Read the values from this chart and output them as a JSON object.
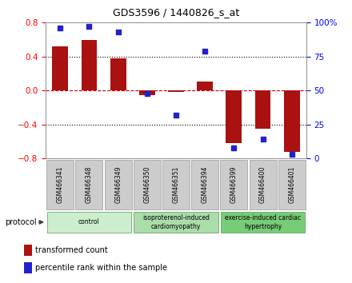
{
  "title": "GDS3596 / 1440826_s_at",
  "samples": [
    "GSM466341",
    "GSM466348",
    "GSM466349",
    "GSM466350",
    "GSM466351",
    "GSM466394",
    "GSM466399",
    "GSM466400",
    "GSM466401"
  ],
  "bar_values": [
    0.52,
    0.6,
    0.38,
    -0.05,
    -0.02,
    0.11,
    -0.62,
    -0.45,
    -0.72
  ],
  "dot_values": [
    96,
    97,
    93,
    48,
    32,
    79,
    8,
    14,
    3
  ],
  "bar_color": "#aa1111",
  "dot_color": "#2222cc",
  "ylim_left": [
    -0.8,
    0.8
  ],
  "ylim_right": [
    0,
    100
  ],
  "yticks_left": [
    -0.8,
    -0.4,
    0.0,
    0.4,
    0.8
  ],
  "yticks_right": [
    0,
    25,
    50,
    75,
    100
  ],
  "ytick_labels_right": [
    "0",
    "25",
    "50",
    "75",
    "100%"
  ],
  "groups": [
    {
      "label": "control",
      "start": 0,
      "end": 3,
      "color": "#cceecc"
    },
    {
      "label": "isoproterenol-induced\ncardiomyopathy",
      "start": 3,
      "end": 6,
      "color": "#aaddaa"
    },
    {
      "label": "exercise-induced cardiac\nhypertrophy",
      "start": 6,
      "end": 9,
      "color": "#77cc77"
    }
  ],
  "protocol_label": "protocol",
  "legend_bar_label": "transformed count",
  "legend_dot_label": "percentile rank within the sample",
  "background_color": "#ffffff",
  "plot_bg_color": "#ffffff",
  "dotted_line_color": "#000000",
  "zero_line_color": "#cc0000",
  "bar_width": 0.55,
  "sample_box_color": "#cccccc",
  "sample_box_edge_color": "#999999"
}
